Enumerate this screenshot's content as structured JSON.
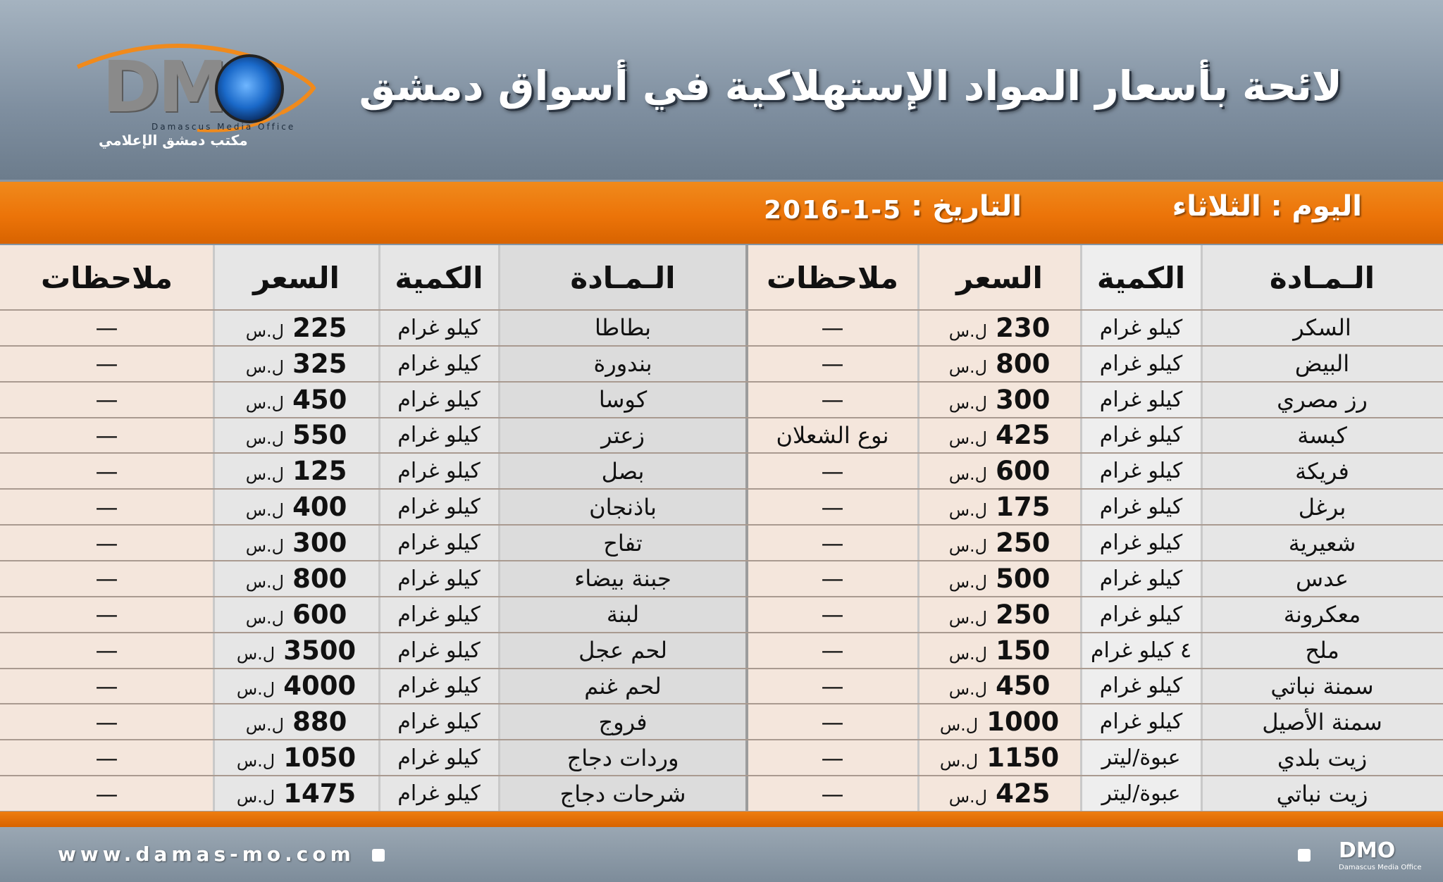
{
  "header": {
    "title": "لائحة بأسعار المواد الإستهلاكية في أسواق دمشق",
    "logo_text": "DMO",
    "logo_sub": "Damascus Media Office",
    "logo_ar": "مكتب دمشق الإعلامي"
  },
  "info": {
    "day": "اليوم : الثلاثاء",
    "date_label": "التاريخ :",
    "date_value": "2016-1-5"
  },
  "columns": {
    "material": "الـمـادة",
    "quantity": "الكمية",
    "price": "السعر",
    "notes": "ملاحظات"
  },
  "currency": "ل.س",
  "right_table": [
    {
      "item": "السكر",
      "qty": "كيلو غرام",
      "price": "230",
      "note": "—"
    },
    {
      "item": "البيض",
      "qty": "كيلو غرام",
      "price": "800",
      "note": "—"
    },
    {
      "item": "رز مصري",
      "qty": "كيلو غرام",
      "price": "300",
      "note": "—"
    },
    {
      "item": "كبسة",
      "qty": "كيلو غرام",
      "price": "425",
      "note": "نوع الشعلان"
    },
    {
      "item": "فريكة",
      "qty": "كيلو غرام",
      "price": "600",
      "note": "—"
    },
    {
      "item": "برغل",
      "qty": "كيلو غرام",
      "price": "175",
      "note": "—"
    },
    {
      "item": "شعيرية",
      "qty": "كيلو غرام",
      "price": "250",
      "note": "—"
    },
    {
      "item": "عدس",
      "qty": "كيلو غرام",
      "price": "500",
      "note": "—"
    },
    {
      "item": "معكرونة",
      "qty": "كيلو غرام",
      "price": "250",
      "note": "—"
    },
    {
      "item": "ملح",
      "qty": "٤ كيلو غرام",
      "price": "150",
      "note": "—"
    },
    {
      "item": "سمنة نباتي",
      "qty": "كيلو غرام",
      "price": "450",
      "note": "—"
    },
    {
      "item": "سمنة الأصيل",
      "qty": "كيلو غرام",
      "price": "1000",
      "note": "—"
    },
    {
      "item": "زيت بلدي",
      "qty": "عبوة/ليتر",
      "price": "1150",
      "note": "—"
    },
    {
      "item": "زيت نباتي",
      "qty": "عبوة/ليتر",
      "price": "425",
      "note": "—"
    }
  ],
  "left_table": [
    {
      "item": "بطاطا",
      "qty": "كيلو غرام",
      "price": "225",
      "note": "—"
    },
    {
      "item": "بندورة",
      "qty": "كيلو غرام",
      "price": "325",
      "note": "—"
    },
    {
      "item": "كوسا",
      "qty": "كيلو غرام",
      "price": "450",
      "note": "—"
    },
    {
      "item": "زعتر",
      "qty": "كيلو غرام",
      "price": "550",
      "note": "—"
    },
    {
      "item": "بصل",
      "qty": "كيلو غرام",
      "price": "125",
      "note": "—"
    },
    {
      "item": "باذنجان",
      "qty": "كيلو غرام",
      "price": "400",
      "note": "—"
    },
    {
      "item": "تفاح",
      "qty": "كيلو غرام",
      "price": "300",
      "note": "—"
    },
    {
      "item": "جبنة بيضاء",
      "qty": "كيلو غرام",
      "price": "800",
      "note": "—"
    },
    {
      "item": "لبنة",
      "qty": "كيلو غرام",
      "price": "600",
      "note": "—"
    },
    {
      "item": "لحم عجل",
      "qty": "كيلو غرام",
      "price": "3500",
      "note": "—"
    },
    {
      "item": "لحم غنم",
      "qty": "كيلو غرام",
      "price": "4000",
      "note": "—"
    },
    {
      "item": "فروج",
      "qty": "كيلو غرام",
      "price": "880",
      "note": "—"
    },
    {
      "item": "وردات دجاج",
      "qty": "كيلو غرام",
      "price": "1050",
      "note": "—"
    },
    {
      "item": "شرحات دجاج",
      "qty": "كيلو غرام",
      "price": "1475",
      "note": "—"
    }
  ],
  "footer": {
    "url": "www.damas-mo.com",
    "logo_text": "DMO"
  },
  "colors": {
    "orange": "#ec7409",
    "item_bg": "#e9e9e9",
    "price_bg": "#f3e4da"
  }
}
